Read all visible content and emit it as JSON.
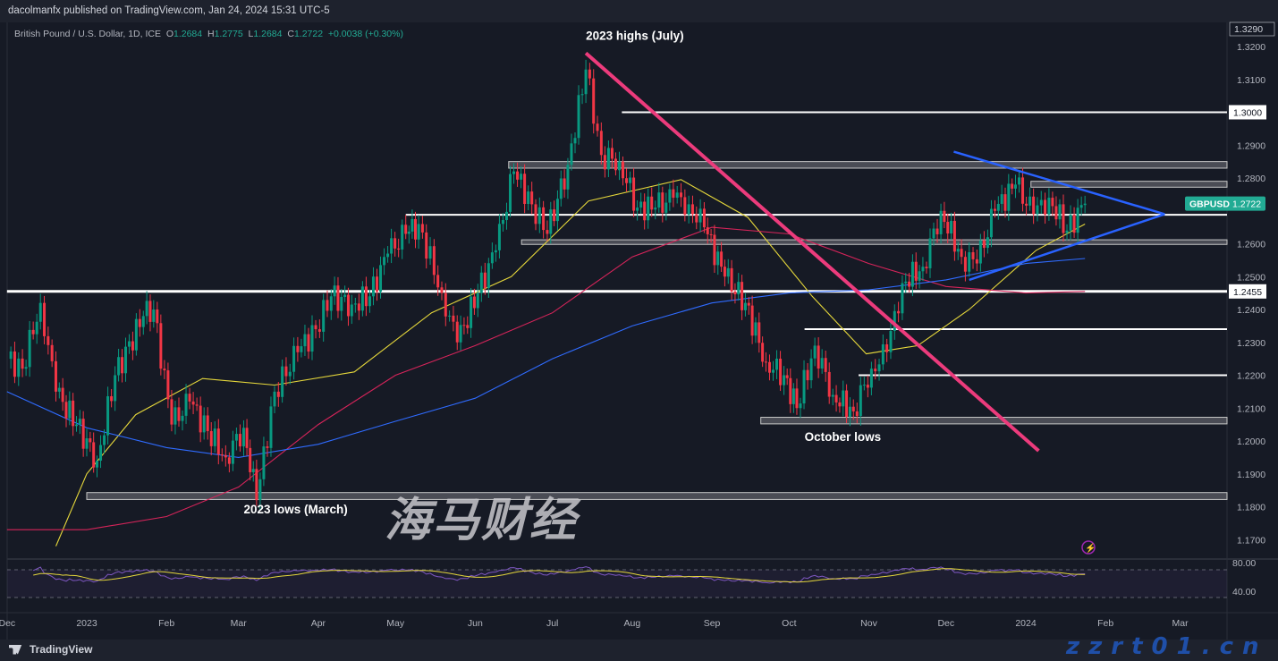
{
  "header": {
    "published": "dacolmanfx published on TradingView.com, Jan 24, 2024 15:31 UTC-5"
  },
  "legend": {
    "symbol": "British Pound / U.S. Dollar, 1D, ICE",
    "o_label": "O",
    "o": "1.2684",
    "h_label": "H",
    "h": "1.2775",
    "l_label": "L",
    "l": "1.2684",
    "c_label": "C",
    "c": "1.2722",
    "change": "+0.0038 (+0.30%)"
  },
  "footer": {
    "brand": "TradingView"
  },
  "watermark": {
    "cn": "海马财经",
    "url": "zzrt01.cn"
  },
  "colors": {
    "up": "#089981",
    "down": "#f23645",
    "ma_fast": "#e5d73b",
    "ma_mid": "#d6245a",
    "ma_slow": "#2f6bff",
    "trend": "#ec3b7c",
    "triangle": "#2962ff",
    "rsi": "#7e57c2",
    "rsi_ma": "#e5d73b",
    "last": "#22ab94"
  },
  "chart_data": {
    "type": "candlestick",
    "symbol": "GBPUSD",
    "timeframe": "1D",
    "ylim": [
      1.165,
      1.3305
    ],
    "y_ticks": [
      "1.3200",
      "1.3100",
      "1.2900",
      "1.2800",
      "1.2600",
      "1.2500",
      "1.2400",
      "1.2300",
      "1.2200",
      "1.2100",
      "1.2000",
      "1.1900",
      "1.1800",
      "1.1700"
    ],
    "top_label": "1.3290",
    "x_ticks": [
      {
        "label": "Dec",
        "date": "2022-12-01"
      },
      {
        "label": "2023",
        "date": "2023-01-01"
      },
      {
        "label": "Feb",
        "date": "2023-02-01"
      },
      {
        "label": "Mar",
        "date": "2023-03-01"
      },
      {
        "label": "Apr",
        "date": "2023-04-01"
      },
      {
        "label": "May",
        "date": "2023-05-01"
      },
      {
        "label": "Jun",
        "date": "2023-06-01"
      },
      {
        "label": "Jul",
        "date": "2023-07-01"
      },
      {
        "label": "Aug",
        "date": "2023-08-01"
      },
      {
        "label": "Sep",
        "date": "2023-09-01"
      },
      {
        "label": "Oct",
        "date": "2023-10-01"
      },
      {
        "label": "Nov",
        "date": "2023-11-01"
      },
      {
        "label": "Dec",
        "date": "2023-12-01"
      },
      {
        "label": "2024",
        "date": "2024-01-01"
      },
      {
        "label": "Feb",
        "date": "2024-02-01"
      },
      {
        "label": "Mar",
        "date": "2024-03-01"
      }
    ],
    "closes": [
      [
        "2022-12-01",
        1.225
      ],
      [
        "2022-12-07",
        1.222
      ],
      [
        "2022-12-14",
        1.242
      ],
      [
        "2022-12-20",
        1.215
      ],
      [
        "2022-12-28",
        1.205
      ],
      [
        "2023-01-05",
        1.194
      ],
      [
        "2023-01-12",
        1.22
      ],
      [
        "2023-01-23",
        1.238
      ],
      [
        "2023-01-27",
        1.24
      ],
      [
        "2023-02-03",
        1.205
      ],
      [
        "2023-02-10",
        1.212
      ],
      [
        "2023-02-17",
        1.203
      ],
      [
        "2023-02-24",
        1.195
      ],
      [
        "2023-03-03",
        1.204
      ],
      [
        "2023-03-08",
        1.182
      ],
      [
        "2023-03-15",
        1.215
      ],
      [
        "2023-03-24",
        1.227
      ],
      [
        "2023-03-31",
        1.234
      ],
      [
        "2023-04-06",
        1.244
      ],
      [
        "2023-04-14",
        1.2415
      ],
      [
        "2023-04-21",
        1.244
      ],
      [
        "2023-04-28",
        1.257
      ],
      [
        "2023-05-05",
        1.263
      ],
      [
        "2023-05-10",
        1.266
      ],
      [
        "2023-05-19",
        1.245
      ],
      [
        "2023-05-25",
        1.23
      ],
      [
        "2023-06-02",
        1.245
      ],
      [
        "2023-06-09",
        1.258
      ],
      [
        "2023-06-16",
        1.282
      ],
      [
        "2023-06-23",
        1.272
      ],
      [
        "2023-06-29",
        1.263
      ],
      [
        "2023-07-07",
        1.284
      ],
      [
        "2023-07-14",
        1.313
      ],
      [
        "2023-07-20",
        1.287
      ],
      [
        "2023-07-27",
        1.285
      ],
      [
        "2023-08-03",
        1.271
      ],
      [
        "2023-08-10",
        1.271
      ],
      [
        "2023-08-17",
        1.274
      ],
      [
        "2023-08-23",
        1.272
      ],
      [
        "2023-08-29",
        1.265
      ],
      [
        "2023-09-06",
        1.25
      ],
      [
        "2023-09-14",
        1.242
      ],
      [
        "2023-09-22",
        1.224
      ],
      [
        "2023-09-29",
        1.22
      ],
      [
        "2023-10-04",
        1.21
      ],
      [
        "2023-10-11",
        1.229
      ],
      [
        "2023-10-18",
        1.214
      ],
      [
        "2023-10-26",
        1.209
      ],
      [
        "2023-11-02",
        1.222
      ],
      [
        "2023-11-08",
        1.227
      ],
      [
        "2023-11-14",
        1.248
      ],
      [
        "2023-11-22",
        1.253
      ],
      [
        "2023-11-29",
        1.27
      ],
      [
        "2023-12-07",
        1.256
      ],
      [
        "2023-12-13",
        1.254
      ],
      [
        "2023-12-20",
        1.27
      ],
      [
        "2023-12-28",
        1.278
      ],
      [
        "2024-01-04",
        1.269
      ],
      [
        "2024-01-10",
        1.274
      ],
      [
        "2024-01-17",
        1.264
      ],
      [
        "2024-01-24",
        1.2722
      ]
    ],
    "moving_averages": [
      {
        "color_key": "ma_fast",
        "points": [
          [
            "2022-12-20",
            1.168
          ],
          [
            "2023-01-01",
            1.19
          ],
          [
            "2023-01-20",
            1.208
          ],
          [
            "2023-02-15",
            1.219
          ],
          [
            "2023-03-15",
            1.217
          ],
          [
            "2023-04-15",
            1.221
          ],
          [
            "2023-05-15",
            1.239
          ],
          [
            "2023-06-15",
            1.25
          ],
          [
            "2023-07-15",
            1.273
          ],
          [
            "2023-08-20",
            1.2795
          ],
          [
            "2023-09-15",
            1.268
          ],
          [
            "2023-10-10",
            1.244
          ],
          [
            "2023-10-31",
            1.2265
          ],
          [
            "2023-11-20",
            1.229
          ],
          [
            "2023-12-10",
            1.24
          ],
          [
            "2024-01-05",
            1.258
          ],
          [
            "2024-01-24",
            1.266
          ]
        ]
      },
      {
        "color_key": "ma_mid",
        "points": [
          [
            "2022-12-01",
            1.173
          ],
          [
            "2023-01-01",
            1.173
          ],
          [
            "2023-02-01",
            1.177
          ],
          [
            "2023-03-01",
            1.186
          ],
          [
            "2023-04-01",
            1.205
          ],
          [
            "2023-05-01",
            1.22
          ],
          [
            "2023-06-01",
            1.229
          ],
          [
            "2023-07-01",
            1.239
          ],
          [
            "2023-08-01",
            1.256
          ],
          [
            "2023-09-01",
            1.265
          ],
          [
            "2023-10-01",
            1.263
          ],
          [
            "2023-11-01",
            1.254
          ],
          [
            "2023-12-01",
            1.247
          ],
          [
            "2024-01-01",
            1.245
          ],
          [
            "2024-01-24",
            1.2455
          ]
        ]
      },
      {
        "color_key": "ma_slow",
        "points": [
          [
            "2022-12-01",
            1.215
          ],
          [
            "2023-01-01",
            1.204
          ],
          [
            "2023-02-01",
            1.198
          ],
          [
            "2023-03-01",
            1.195
          ],
          [
            "2023-04-01",
            1.199
          ],
          [
            "2023-05-01",
            1.206
          ],
          [
            "2023-06-01",
            1.213
          ],
          [
            "2023-07-01",
            1.225
          ],
          [
            "2023-08-01",
            1.235
          ],
          [
            "2023-09-01",
            1.242
          ],
          [
            "2023-10-01",
            1.245
          ],
          [
            "2023-11-01",
            1.246
          ],
          [
            "2023-12-01",
            1.249
          ],
          [
            "2024-01-01",
            1.254
          ],
          [
            "2024-01-24",
            1.2555
          ]
        ]
      }
    ],
    "levels": [
      {
        "price": 1.3,
        "from": "2023-07-28",
        "style": "line",
        "label": "1.3000"
      },
      {
        "price": 1.2688,
        "from": "2023-05-05",
        "style": "line"
      },
      {
        "price": 1.2455,
        "from": "2022-12-01",
        "style": "thick",
        "label": "1.2455"
      },
      {
        "price": 1.234,
        "from": "2023-10-07",
        "style": "line"
      },
      {
        "price": 1.22,
        "from": "2023-10-28",
        "style": "line"
      }
    ],
    "zones": [
      {
        "top": 1.285,
        "bottom": 1.283,
        "from": "2023-06-14"
      },
      {
        "top": 1.279,
        "bottom": 1.2772,
        "from": "2024-01-03"
      },
      {
        "top": 1.2612,
        "bottom": 1.2598,
        "from": "2023-06-19"
      },
      {
        "top": 1.2072,
        "bottom": 1.2052,
        "from": "2023-09-20"
      },
      {
        "top": 1.1843,
        "bottom": 1.1822,
        "from": "2023-01-01"
      }
    ],
    "trendlines": [
      {
        "color_key": "trend",
        "from": [
          "2023-07-14",
          1.318
        ],
        "to": [
          "2024-01-06",
          1.197
        ]
      },
      {
        "color_key": "triangle",
        "from": [
          "2023-12-04",
          1.288
        ],
        "to": [
          "2024-02-24",
          1.269
        ]
      },
      {
        "color_key": "triangle",
        "from": [
          "2023-12-10",
          1.249
        ],
        "to": [
          "2024-02-24",
          1.269
        ]
      }
    ],
    "annotations": [
      {
        "text": "2023 highs (July)",
        "date": "2023-07-14",
        "price": 1.322
      },
      {
        "text": "October lows",
        "date": "2023-10-07",
        "price": 1.2
      },
      {
        "text": "2023 lows (March)",
        "date": "2023-03-03",
        "price": 1.178
      }
    ],
    "last_price": {
      "symbol": "GBPUSD",
      "value": "1.2722",
      "price": 1.2722
    },
    "rsi": {
      "levels": [
        "80.00",
        "40.00"
      ],
      "ylim": [
        35,
        85
      ]
    }
  }
}
